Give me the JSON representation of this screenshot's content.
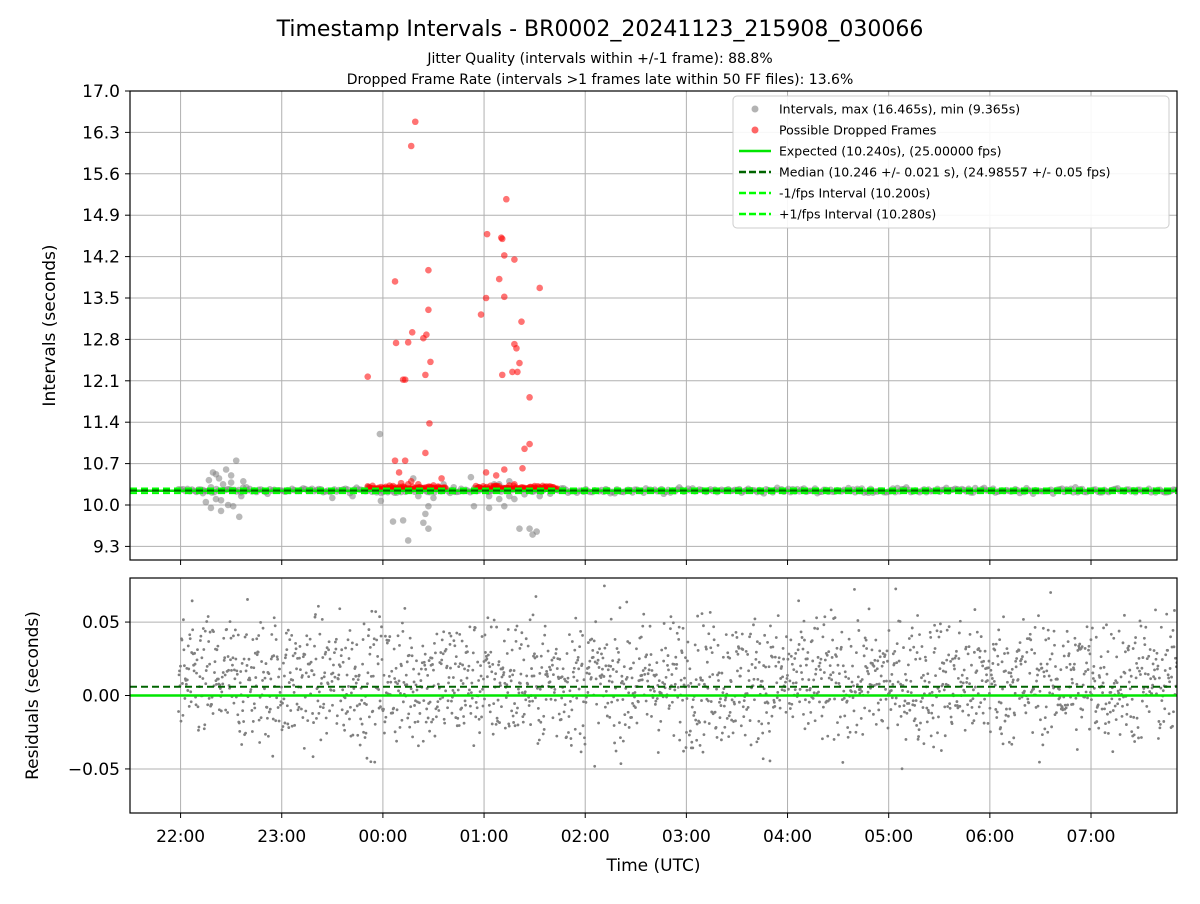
{
  "title": "Timestamp Intervals - BR0002_20241123_215908_030066",
  "subtitle1": "Jitter Quality (intervals within +/-1 frame): 88.8%",
  "subtitle2": "Dropped Frame Rate (intervals >1 frames late within 50 FF files): 13.6%",
  "colors": {
    "intervals": "#808080",
    "dropped": "#ff0000",
    "expected": "#00e600",
    "median": "#006400",
    "fps_interval": "#00ff00",
    "residual": "#808080",
    "grid": "#b0b0b0"
  },
  "chart_data": [
    {
      "type": "scatter",
      "ylabel": "Intervals (seconds)",
      "ylim": [
        9.07,
        17.0
      ],
      "yticks": [
        9.3,
        10.0,
        10.7,
        11.4,
        12.1,
        12.8,
        13.5,
        14.2,
        14.9,
        15.6,
        16.3,
        17.0
      ],
      "ytick_labels": [
        "9.3",
        "10.0",
        "10.7",
        "11.4",
        "12.1",
        "12.8",
        "13.5",
        "14.2",
        "14.9",
        "15.6",
        "16.3",
        "17.0"
      ],
      "xlim_hours_utc": [
        21.5,
        31.85
      ],
      "grid": true,
      "legend_position": "top-right",
      "legend": [
        {
          "label": "Intervals, max (16.465s), min (9.365s)",
          "kind": "marker",
          "color": "#808080"
        },
        {
          "label": "Possible Dropped Frames",
          "kind": "marker",
          "color": "#ff0000"
        },
        {
          "label": "Expected (10.240s), (25.00000 fps)",
          "kind": "solid",
          "color": "#00e600"
        },
        {
          "label": "Median (10.246 +/- 0.021 s), (24.98557 +/- 0.05 fps)",
          "kind": "dashed",
          "color": "#006400"
        },
        {
          "label": "-1/fps Interval (10.200s)",
          "kind": "dashed",
          "color": "#00ff00"
        },
        {
          "label": "+1/fps Interval (10.280s)",
          "kind": "dashed",
          "color": "#00ff00"
        }
      ],
      "lines": {
        "expected": 10.24,
        "median": 10.246,
        "minus_fps": 10.2,
        "plus_fps": 10.28
      },
      "intervals_max": 16.465,
      "intervals_min": 9.365,
      "baseline_band": {
        "from_hour": 21.98,
        "to_hour": 31.85,
        "center": 10.245,
        "spread": 0.035
      },
      "extra_intervals": [
        [
          22.25,
          10.05
        ],
        [
          22.28,
          10.42
        ],
        [
          22.3,
          9.95
        ],
        [
          22.32,
          10.55
        ],
        [
          22.35,
          10.1
        ],
        [
          22.38,
          10.45
        ],
        [
          22.4,
          9.9
        ],
        [
          22.42,
          10.35
        ],
        [
          22.45,
          10.6
        ],
        [
          22.47,
          10.0
        ],
        [
          22.5,
          10.5
        ],
        [
          22.52,
          9.98
        ],
        [
          22.55,
          10.75
        ],
        [
          22.58,
          9.8
        ],
        [
          22.6,
          10.15
        ],
        [
          22.62,
          10.4
        ],
        [
          22.3,
          10.3
        ],
        [
          22.4,
          10.08
        ],
        [
          22.5,
          10.38
        ],
        [
          22.22,
          10.2
        ],
        [
          22.65,
          10.3
        ],
        [
          22.35,
          10.52
        ],
        [
          23.5,
          10.12
        ],
        [
          23.7,
          10.15
        ],
        [
          23.85,
          10.3
        ],
        [
          23.97,
          11.2
        ],
        [
          23.98,
          10.07
        ],
        [
          24.1,
          9.72
        ],
        [
          24.2,
          9.74
        ],
        [
          24.25,
          9.4
        ],
        [
          24.3,
          10.45
        ],
        [
          24.35,
          10.15
        ],
        [
          24.4,
          9.7
        ],
        [
          24.42,
          9.85
        ],
        [
          24.45,
          9.98
        ],
        [
          24.45,
          9.6
        ],
        [
          24.5,
          10.12
        ],
        [
          24.6,
          10.35
        ],
        [
          24.7,
          10.3
        ],
        [
          24.87,
          10.47
        ],
        [
          24.9,
          9.98
        ],
        [
          24.95,
          10.3
        ],
        [
          25.05,
          9.95
        ],
        [
          25.1,
          10.35
        ],
        [
          25.15,
          10.1
        ],
        [
          25.2,
          9.98
        ],
        [
          25.25,
          10.15
        ],
        [
          25.3,
          10.1
        ],
        [
          25.35,
          9.6
        ],
        [
          25.4,
          10.18
        ],
        [
          25.45,
          9.6
        ],
        [
          25.48,
          9.5
        ],
        [
          25.52,
          9.55
        ],
        [
          25.55,
          10.15
        ],
        [
          25.6,
          10.3
        ],
        [
          25.15,
          10.35
        ],
        [
          25.05,
          10.15
        ],
        [
          25.25,
          10.4
        ]
      ],
      "dropped_frames": [
        [
          23.85,
          12.17
        ],
        [
          24.12,
          13.78
        ],
        [
          24.13,
          12.74
        ],
        [
          24.12,
          10.75
        ],
        [
          24.16,
          10.55
        ],
        [
          24.2,
          12.12
        ],
        [
          24.22,
          12.12
        ],
        [
          24.22,
          10.75
        ],
        [
          24.25,
          12.75
        ],
        [
          24.28,
          16.07
        ],
        [
          24.29,
          12.92
        ],
        [
          24.32,
          16.48
        ],
        [
          24.4,
          12.82
        ],
        [
          24.42,
          12.2
        ],
        [
          24.42,
          10.88
        ],
        [
          24.43,
          12.88
        ],
        [
          24.45,
          13.97
        ],
        [
          24.45,
          13.3
        ],
        [
          24.46,
          11.38
        ],
        [
          24.47,
          12.42
        ],
        [
          24.18,
          10.37
        ],
        [
          24.25,
          10.35
        ],
        [
          24.28,
          10.4
        ],
        [
          24.35,
          10.35
        ],
        [
          24.5,
          10.33
        ],
        [
          24.55,
          10.3
        ],
        [
          24.58,
          10.45
        ],
        [
          24.2,
          10.28
        ],
        [
          24.1,
          10.32
        ],
        [
          24.97,
          13.22
        ],
        [
          25.02,
          10.55
        ],
        [
          25.02,
          13.5
        ],
        [
          25.03,
          14.58
        ],
        [
          25.12,
          10.5
        ],
        [
          25.15,
          13.82
        ],
        [
          25.17,
          14.52
        ],
        [
          25.18,
          14.5
        ],
        [
          25.18,
          12.2
        ],
        [
          25.2,
          14.22
        ],
        [
          25.2,
          13.52
        ],
        [
          25.2,
          10.6
        ],
        [
          25.22,
          15.17
        ],
        [
          25.28,
          12.25
        ],
        [
          25.3,
          12.72
        ],
        [
          25.3,
          14.15
        ],
        [
          25.32,
          12.65
        ],
        [
          25.33,
          12.25
        ],
        [
          25.35,
          12.4
        ],
        [
          25.37,
          13.1
        ],
        [
          25.38,
          10.62
        ],
        [
          25.4,
          10.95
        ],
        [
          25.45,
          11.03
        ],
        [
          25.45,
          11.82
        ],
        [
          25.55,
          13.67
        ],
        [
          25.1,
          10.32
        ],
        [
          25.3,
          10.35
        ],
        [
          25.45,
          10.3
        ],
        [
          25.25,
          10.33
        ],
        [
          25.5,
          10.32
        ]
      ],
      "dropped_clusters": [
        {
          "from_hour": 23.85,
          "to_hour": 24.62
        },
        {
          "from_hour": 24.92,
          "to_hour": 25.73
        }
      ]
    },
    {
      "type": "scatter",
      "ylabel": "Residuals (seconds)",
      "xlabel": "Time (UTC)",
      "ylim": [
        -0.08,
        0.08
      ],
      "yticks": [
        -0.05,
        0.0,
        0.05
      ],
      "ytick_labels": [
        "−0.05",
        "0.00",
        "0.05"
      ],
      "xticks_hours": [
        22,
        23,
        24,
        25,
        26,
        27,
        28,
        29,
        30,
        31
      ],
      "xtick_labels": [
        "22:00",
        "23:00",
        "00:00",
        "01:00",
        "02:00",
        "03:00",
        "04:00",
        "05:00",
        "06:00",
        "07:00"
      ],
      "grid": true,
      "lines": {
        "zero": 0.0,
        "median_offset": 0.006
      },
      "residual_cloud": {
        "from_hour": 21.98,
        "to_hour": 31.85,
        "center": 0.01,
        "spread": 0.022
      }
    }
  ]
}
